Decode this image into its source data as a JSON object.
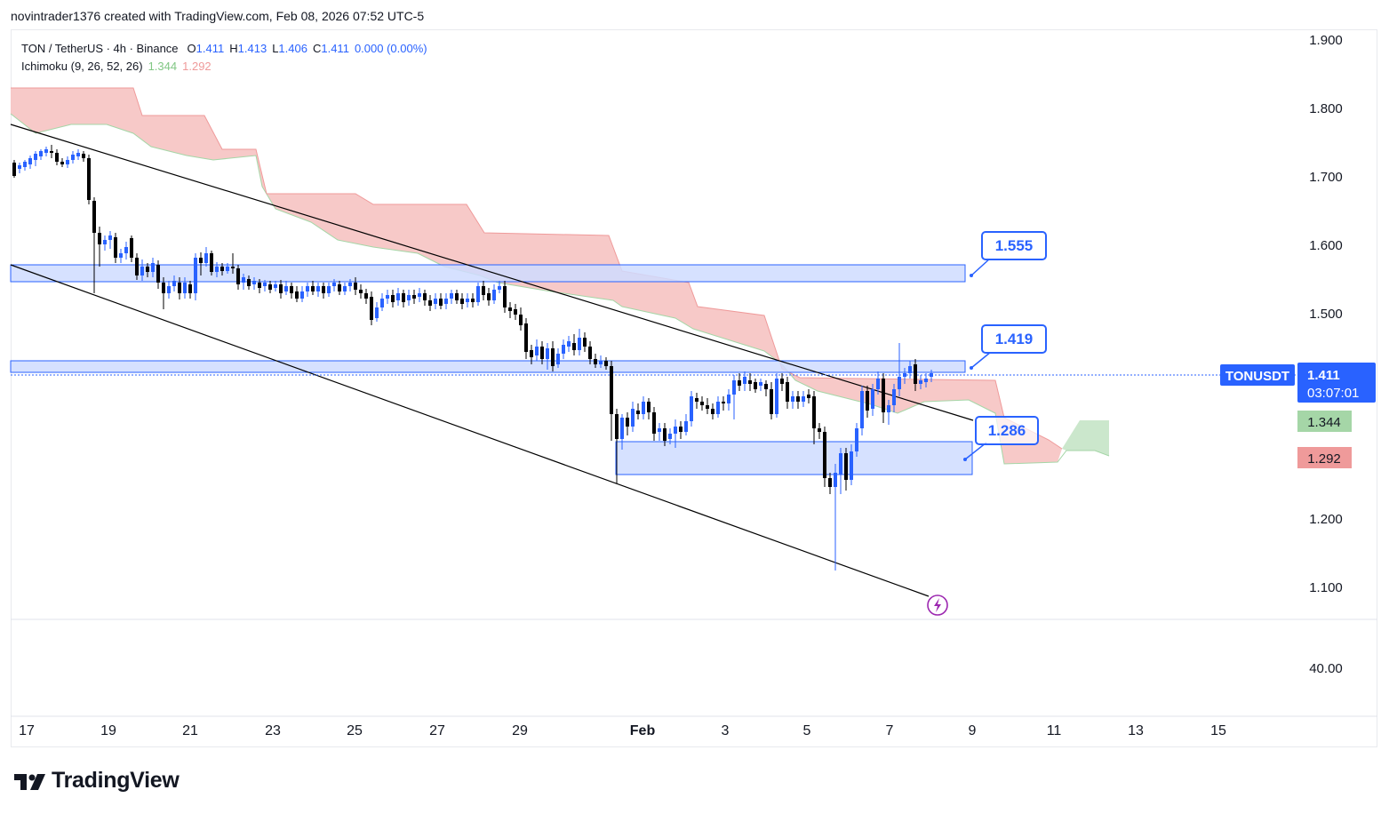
{
  "caption": "novintrader1376 created with TradingView.com, Feb 08, 2026 07:52 UTC-5",
  "legend": {
    "symbol": "TON / TetherUS · 4h · Binance",
    "o_label": "O",
    "o_value": "1.411",
    "h_label": "H",
    "h_value": "1.413",
    "l_label": "L",
    "l_value": "1.406",
    "c_label": "C",
    "c_value": "1.411",
    "change": "0.000 (0.00%)",
    "indicator_name": "Ichimoku (9, 26, 52, 26)",
    "indicator_value_a": "1.344",
    "indicator_value_b": "1.292"
  },
  "price_axis": [
    "1.900",
    "1.800",
    "1.700",
    "1.600",
    "1.500",
    "1.200",
    "1.100"
  ],
  "lower_pane_axis": "40.00",
  "time_axis": [
    "17",
    "19",
    "21",
    "23",
    "25",
    "27",
    "29",
    "Feb",
    "3",
    "5",
    "7",
    "9",
    "11",
    "13",
    "15"
  ],
  "callouts": [
    "1.555",
    "1.419",
    "1.286"
  ],
  "price_tag": {
    "symbol": "TONUSDT",
    "price": "1.411",
    "countdown": "03:07:01"
  },
  "cloud_tags": {
    "span_a": "1.344",
    "span_b": "1.292"
  },
  "colors": {
    "up": "#2962ff",
    "down": "#000000",
    "zone_fill": "#cfdcff",
    "zone_stroke": "#2962ff",
    "cloud_bear": "#f7c6c5",
    "cloud_bull": "#c8e6c9",
    "accent": "#2962ff",
    "tag_green": "#a5d6a7",
    "tag_red": "#ef9a9a"
  },
  "logo": "TradingView"
}
